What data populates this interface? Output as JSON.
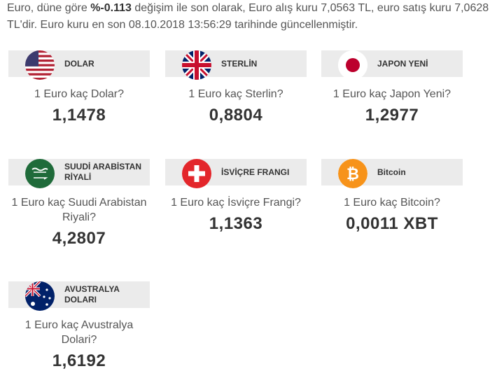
{
  "intro": {
    "text_a": "Euro, düne göre ",
    "change": "%-0.113",
    "text_b": " değişim ile son olarak, Euro alış kuru 7,0563 TL, euro satış kuru 7,0628",
    "line2": "TL'dir. Euro kuru en son 08.10.2018 13:56:29 tarihinde güncellenmiştir."
  },
  "cards": [
    {
      "label": "DOLAR",
      "question": "1 Euro kaç Dolar?",
      "value": "1,1478",
      "icon": "us-flag-icon"
    },
    {
      "label": "STERLİN",
      "question": "1 Euro kaç Sterlin?",
      "value": "0,8804",
      "icon": "uk-flag-icon"
    },
    {
      "label": "JAPON YENİ",
      "question": "1 Euro kaç Japon Yeni?",
      "value": "1,2977",
      "icon": "japan-flag-icon"
    },
    {
      "label": "SUUDİ ARABİSTAN RİYALİ",
      "question": "1 Euro kaç Suudi Arabistan Riyali?",
      "value": "4,2807",
      "icon": "saudi-flag-icon"
    },
    {
      "label": "İSVİÇRE FRANGI",
      "question": "1 Euro kaç İsviçre Frangi?",
      "value": "1,1363",
      "icon": "swiss-flag-icon"
    },
    {
      "label": "Bitcoin",
      "question": "1 Euro kaç Bitcoin?",
      "value": "0,0011 XBT",
      "icon": "bitcoin-icon"
    },
    {
      "label": "AVUSTRALYA DOLARI",
      "question": "1 Euro kaç Avustralya Dolari?",
      "value": "1,6192",
      "icon": "australia-flag-icon"
    }
  ],
  "colors": {
    "header_bg": "#ebebeb",
    "bitcoin": "#f7931a",
    "swiss_red": "#e3262b",
    "saudi_green": "#1f6b3a"
  }
}
